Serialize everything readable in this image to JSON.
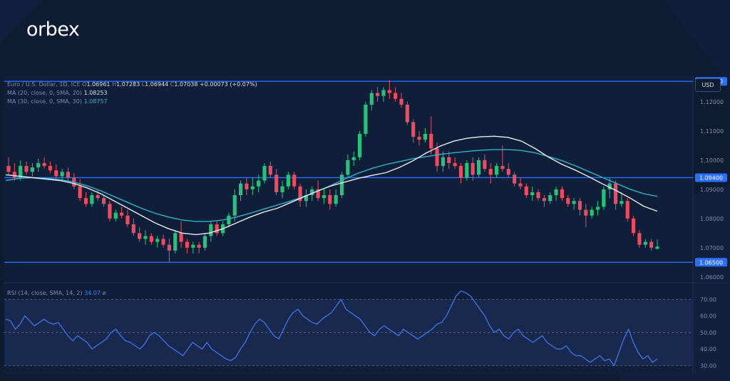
{
  "brand": {
    "logo_text": "orbex"
  },
  "legend": {
    "symbol": "Euro / U.S. Dollar, 1D, ICE",
    "ohlc": [
      {
        "k": "O",
        "v": "1.06961"
      },
      {
        "k": "H",
        "v": "1.07283"
      },
      {
        "k": "L",
        "v": "1.06944"
      },
      {
        "k": "C",
        "v": "1.07038"
      }
    ],
    "change": "+0.00073 (+0.07%)",
    "ma20_label": "MA (20, close, 0, SMA, 20)",
    "ma20_value": "1.08253",
    "ma30_label": "MA (30, close, 0, SMA, 30)",
    "ma30_value": "1.08757",
    "rsi_label": "RSI (14, close, SMA, 14, 2)",
    "rsi_value": "34.07",
    "rsi_extra": "ø"
  },
  "currency_label": "USD",
  "colors": {
    "background": "#0d1b33",
    "up": "#26c27a",
    "down": "#ef4a5e",
    "ma20": "#e8ecf4",
    "ma30": "#2fb3c8",
    "rsi": "#3d6fe0",
    "level": "#2a6fff"
  },
  "chart_data": [
    {
      "type": "candlestick",
      "title": "Euro / U.S. Dollar, 1D, ICE",
      "ylim": [
        1.058,
        1.129
      ],
      "yticks": [
        1.06,
        1.07,
        1.08,
        1.09,
        1.1,
        1.11,
        1.12
      ],
      "ytick_labels": [
        "1.06000",
        "1.07000",
        "1.08000",
        "1.09000",
        "1.10000",
        "1.11000",
        "1.12000"
      ],
      "levels": [
        {
          "value": 1.127,
          "label": "1.12700"
        },
        {
          "value": 1.094,
          "label": "1.09400"
        },
        {
          "value": 1.065,
          "label": "1.06500"
        }
      ],
      "candles": [
        [
          1.098,
          1.101,
          1.095,
          1.096
        ],
        [
          1.096,
          1.099,
          1.093,
          1.094
        ],
        [
          1.094,
          1.1,
          1.093,
          1.098
        ],
        [
          1.098,
          1.0995,
          1.095,
          1.096
        ],
        [
          1.096,
          1.099,
          1.0945,
          1.0975
        ],
        [
          1.0975,
          1.1005,
          1.096,
          1.099
        ],
        [
          1.099,
          1.101,
          1.097,
          1.098
        ],
        [
          1.098,
          1.0995,
          1.0955,
          1.0965
        ],
        [
          1.0965,
          1.0985,
          1.0935,
          1.0945
        ],
        [
          1.0945,
          1.097,
          1.093,
          1.096
        ],
        [
          1.096,
          1.0975,
          1.093,
          1.094
        ],
        [
          1.094,
          1.0955,
          1.09,
          1.091
        ],
        [
          1.091,
          1.0935,
          1.086,
          1.087
        ],
        [
          1.087,
          1.089,
          1.084,
          1.085
        ],
        [
          1.085,
          1.089,
          1.084,
          1.088
        ],
        [
          1.088,
          1.09,
          1.086,
          1.087
        ],
        [
          1.087,
          1.088,
          1.084,
          1.085
        ],
        [
          1.085,
          1.086,
          1.079,
          1.08
        ],
        [
          1.08,
          1.083,
          1.079,
          1.082
        ],
        [
          1.082,
          1.084,
          1.08,
          1.081
        ],
        [
          1.081,
          1.083,
          1.077,
          1.078
        ],
        [
          1.078,
          1.08,
          1.074,
          1.075
        ],
        [
          1.075,
          1.077,
          1.072,
          1.073
        ],
        [
          1.073,
          1.076,
          1.071,
          1.074
        ],
        [
          1.074,
          1.075,
          1.071,
          1.072
        ],
        [
          1.072,
          1.074,
          1.07,
          1.073
        ],
        [
          1.073,
          1.0745,
          1.07,
          1.071
        ],
        [
          1.071,
          1.073,
          1.065,
          1.069
        ],
        [
          1.069,
          1.076,
          1.068,
          1.075
        ],
        [
          1.075,
          1.079,
          1.07,
          1.072
        ],
        [
          1.072,
          1.073,
          1.068,
          1.07
        ],
        [
          1.07,
          1.072,
          1.068,
          1.071
        ],
        [
          1.071,
          1.072,
          1.068,
          1.07
        ],
        [
          1.07,
          1.075,
          1.069,
          1.074
        ],
        [
          1.074,
          1.079,
          1.072,
          1.078
        ],
        [
          1.078,
          1.079,
          1.074,
          1.075
        ],
        [
          1.075,
          1.079,
          1.074,
          1.078
        ],
        [
          1.078,
          1.082,
          1.077,
          1.081
        ],
        [
          1.081,
          1.09,
          1.079,
          1.088
        ],
        [
          1.088,
          1.093,
          1.086,
          1.092
        ],
        [
          1.092,
          1.094,
          1.088,
          1.09
        ],
        [
          1.09,
          1.094,
          1.088,
          1.091
        ],
        [
          1.091,
          1.095,
          1.089,
          1.093
        ],
        [
          1.093,
          1.099,
          1.092,
          1.098
        ],
        [
          1.098,
          1.0995,
          1.094,
          1.095
        ],
        [
          1.095,
          1.097,
          1.088,
          1.089
        ],
        [
          1.089,
          1.093,
          1.087,
          1.091
        ],
        [
          1.091,
          1.096,
          1.09,
          1.095
        ],
        [
          1.095,
          1.096,
          1.09,
          1.091
        ],
        [
          1.091,
          1.092,
          1.084,
          1.086
        ],
        [
          1.086,
          1.09,
          1.084,
          1.088
        ],
        [
          1.088,
          1.091,
          1.086,
          1.09
        ],
        [
          1.09,
          1.093,
          1.086,
          1.087
        ],
        [
          1.087,
          1.09,
          1.085,
          1.088
        ],
        [
          1.088,
          1.09,
          1.083,
          1.085
        ],
        [
          1.085,
          1.09,
          1.084,
          1.088
        ],
        [
          1.088,
          1.096,
          1.087,
          1.095
        ],
        [
          1.095,
          1.102,
          1.094,
          1.1
        ],
        [
          1.1,
          1.103,
          1.098,
          1.101
        ],
        [
          1.101,
          1.11,
          1.1,
          1.109
        ],
        [
          1.109,
          1.12,
          1.108,
          1.119
        ],
        [
          1.119,
          1.124,
          1.117,
          1.123
        ],
        [
          1.123,
          1.125,
          1.12,
          1.122
        ],
        [
          1.122,
          1.125,
          1.12,
          1.124
        ],
        [
          1.124,
          1.1275,
          1.121,
          1.123
        ],
        [
          1.123,
          1.125,
          1.12,
          1.121
        ],
        [
          1.121,
          1.123,
          1.118,
          1.119
        ],
        [
          1.119,
          1.12,
          1.112,
          1.113
        ],
        [
          1.113,
          1.114,
          1.106,
          1.108
        ],
        [
          1.108,
          1.11,
          1.105,
          1.107
        ],
        [
          1.107,
          1.111,
          1.106,
          1.109
        ],
        [
          1.109,
          1.115,
          1.102,
          1.104
        ],
        [
          1.104,
          1.106,
          1.096,
          1.098
        ],
        [
          1.098,
          1.103,
          1.096,
          1.101
        ],
        [
          1.101,
          1.103,
          1.097,
          1.099
        ],
        [
          1.099,
          1.101,
          1.097,
          1.098
        ],
        [
          1.098,
          1.099,
          1.092,
          1.094
        ],
        [
          1.094,
          1.1,
          1.093,
          1.099
        ],
        [
          1.099,
          1.101,
          1.093,
          1.095
        ],
        [
          1.095,
          1.101,
          1.094,
          1.1
        ],
        [
          1.1,
          1.102,
          1.096,
          1.097
        ],
        [
          1.097,
          1.099,
          1.092,
          1.095
        ],
        [
          1.095,
          1.099,
          1.094,
          1.098
        ],
        [
          1.098,
          1.105,
          1.096,
          1.097
        ],
        [
          1.097,
          1.099,
          1.094,
          1.095
        ],
        [
          1.095,
          1.096,
          1.091,
          1.092
        ],
        [
          1.092,
          1.094,
          1.09,
          1.091
        ],
        [
          1.091,
          1.092,
          1.087,
          1.088
        ],
        [
          1.088,
          1.091,
          1.086,
          1.089
        ],
        [
          1.089,
          1.09,
          1.086,
          1.087
        ],
        [
          1.087,
          1.088,
          1.084,
          1.086
        ],
        [
          1.086,
          1.089,
          1.085,
          1.088
        ],
        [
          1.088,
          1.091,
          1.086,
          1.09
        ],
        [
          1.09,
          1.091,
          1.086,
          1.087
        ],
        [
          1.087,
          1.088,
          1.084,
          1.085
        ],
        [
          1.085,
          1.087,
          1.083,
          1.086
        ],
        [
          1.086,
          1.087,
          1.081,
          1.083
        ],
        [
          1.083,
          1.085,
          1.077,
          1.081
        ],
        [
          1.081,
          1.084,
          1.08,
          1.083
        ],
        [
          1.083,
          1.086,
          1.081,
          1.084
        ],
        [
          1.084,
          1.091,
          1.083,
          1.09
        ],
        [
          1.09,
          1.094,
          1.087,
          1.092
        ],
        [
          1.092,
          1.093,
          1.083,
          1.085
        ],
        [
          1.085,
          1.089,
          1.084,
          1.086
        ],
        [
          1.086,
          1.087,
          1.079,
          1.08
        ],
        [
          1.08,
          1.081,
          1.074,
          1.075
        ],
        [
          1.075,
          1.076,
          1.07,
          1.071
        ],
        [
          1.071,
          1.073,
          1.07,
          1.072
        ],
        [
          1.072,
          1.073,
          1.069,
          1.07
        ],
        [
          1.0696,
          1.0728,
          1.0694,
          1.0704
        ]
      ],
      "ma20": [
        1.095,
        1.0945,
        1.094,
        1.0935,
        1.093,
        1.092,
        1.0905,
        1.0885,
        1.086,
        1.0835,
        1.081,
        1.0785,
        1.0765,
        1.075,
        1.0745,
        1.075,
        1.0765,
        1.0785,
        1.0805,
        1.0822,
        1.0835,
        1.0855,
        1.0875,
        1.0895,
        1.0912,
        1.0925,
        1.0938,
        1.0948,
        1.0957,
        1.0975,
        1.0998,
        1.1025,
        1.1048,
        1.1065,
        1.1075,
        1.108,
        1.1082,
        1.1078,
        1.1065,
        1.104,
        1.101,
        1.0985,
        1.0965,
        1.0942,
        1.0918,
        1.0895,
        1.087,
        1.0842,
        1.0825
      ],
      "ma30": [
        1.093,
        1.0938,
        1.094,
        1.0938,
        1.0933,
        1.0925,
        1.0912,
        1.0895,
        1.0875,
        1.0855,
        1.0835,
        1.0818,
        1.0805,
        1.0795,
        1.079,
        1.079,
        1.0795,
        1.0805,
        1.0818,
        1.0832,
        1.0846,
        1.086,
        1.0876,
        1.0894,
        1.0914,
        1.0936,
        1.0956,
        1.0972,
        1.0985,
        1.0995,
        1.1005,
        1.1012,
        1.102,
        1.1025,
        1.103,
        1.1034,
        1.1036,
        1.1036,
        1.1033,
        1.1025,
        1.1012,
        1.0998,
        1.098,
        1.096,
        1.094,
        1.092,
        1.09,
        1.0885,
        1.0876
      ]
    },
    {
      "type": "line",
      "title": "RSI (14, close, SMA, 14, 2)",
      "ylim": [
        25,
        80
      ],
      "yticks": [
        30,
        40,
        50,
        60,
        70
      ],
      "ytick_labels": [
        "30.00",
        "40.00",
        "50.00",
        "60.00",
        "70.00"
      ],
      "levels": [
        70,
        50,
        30
      ],
      "values": [
        58,
        57,
        52,
        55,
        60,
        57,
        54,
        56,
        58,
        56,
        55,
        56,
        52,
        48,
        45,
        48,
        46,
        44,
        40,
        42,
        44,
        46,
        50,
        52,
        48,
        45,
        44,
        42,
        40,
        43,
        48,
        50,
        48,
        45,
        42,
        40,
        38,
        36,
        40,
        44,
        42,
        40,
        44,
        40,
        38,
        36,
        34,
        33,
        35,
        40,
        44,
        50,
        55,
        58,
        56,
        52,
        48,
        46,
        52,
        58,
        62,
        64,
        60,
        58,
        56,
        55,
        58,
        60,
        62,
        66,
        70,
        64,
        62,
        60,
        58,
        54,
        50,
        48,
        52,
        54,
        52,
        50,
        48,
        52,
        50,
        48,
        46,
        48,
        50,
        52,
        55,
        56,
        60,
        66,
        72,
        75,
        74,
        72,
        68,
        64,
        60,
        54,
        50,
        52,
        48,
        46,
        50,
        52,
        48,
        46,
        44,
        46,
        48,
        44,
        42,
        40,
        40,
        42,
        38,
        36,
        36,
        34,
        32,
        34,
        36,
        33,
        34,
        30,
        38,
        46,
        52,
        44,
        38,
        34,
        36,
        32,
        34
      ]
    }
  ]
}
